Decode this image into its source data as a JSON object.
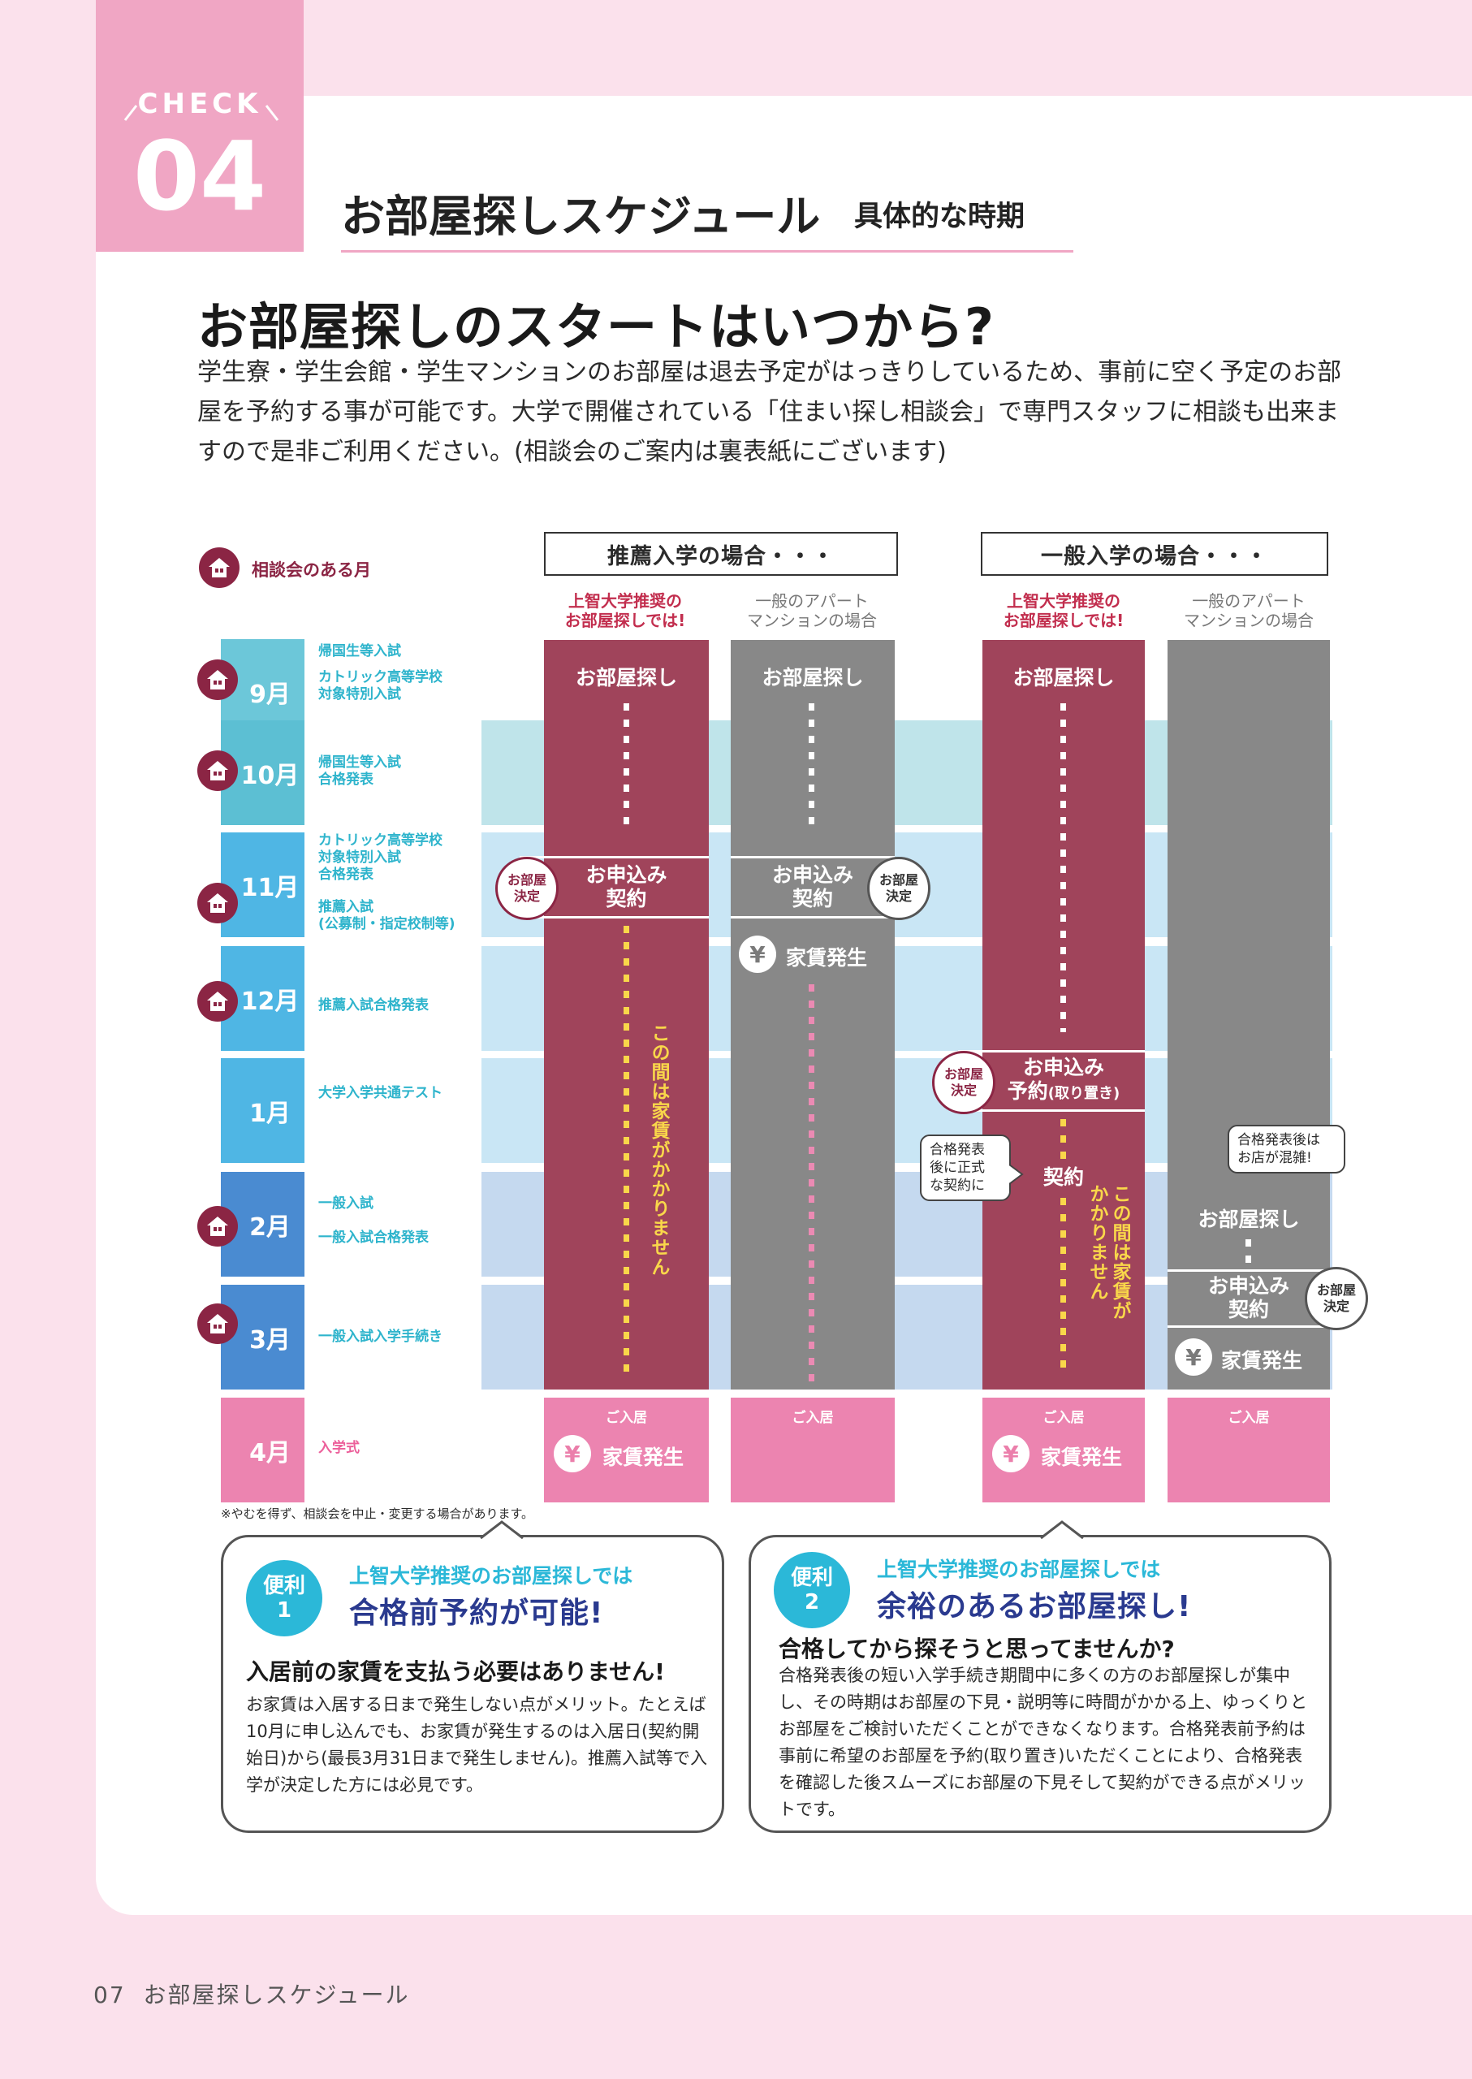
{
  "check": {
    "word": "CHECK",
    "number": "04"
  },
  "section": {
    "title": "お部屋探しスケジュール",
    "subtitle": "具体的な時期"
  },
  "headline": "お部屋探しのスタートはいつから?",
  "intro": "学生寮・学生会館・学生マンションのお部屋は退去予定がはっきりしているため、事前に空く予定のお部屋を予約する事が可能です。大学で開催されている「住まい探し相談会」で専門スタッフに相談も出来ますので是非ご利用ください。(相談会のご案内は裏表紙にございます)",
  "legend": {
    "icon": "house-icon",
    "label": "相談会のある月"
  },
  "headers": {
    "recommend": "推薦入学の場合・・・",
    "general": "一般入学の場合・・・",
    "sophia_1": "上智大学推奨の",
    "sophia_2": "お部屋探しでは!",
    "apart_1": "一般のアパート",
    "apart_2": "マンションの場合"
  },
  "months": [
    {
      "label": "9月",
      "consult": true,
      "events": [
        "帰国生等入試",
        "",
        "カトリック高等学校",
        "対象特別入試"
      ]
    },
    {
      "label": "10月",
      "consult": true,
      "events": [
        "帰国生等入試",
        "合格発表"
      ]
    },
    {
      "label": "11月",
      "consult": true,
      "events": [
        "カトリック高等学校",
        "対象特別入試",
        "合格発表",
        "",
        "推薦入試",
        "(公募制・指定校制等)"
      ]
    },
    {
      "label": "12月",
      "consult": true,
      "events": [
        "推薦入試合格発表"
      ]
    },
    {
      "label": "1月",
      "consult": false,
      "events": [
        "大学入学共通テスト"
      ]
    },
    {
      "label": "2月",
      "consult": true,
      "events": [
        "一般入試",
        "",
        "一般入試合格発表"
      ]
    },
    {
      "label": "3月",
      "consult": true,
      "events": [
        "一般入試入学手続き"
      ]
    },
    {
      "label": "4月",
      "consult": false,
      "events": [
        "入学式"
      ]
    }
  ],
  "schedule": {
    "search": "お部屋探し",
    "apply": "お申込み",
    "contract": "契約",
    "reserve": "予約",
    "reserve_note": "(取り置き)",
    "room_decided_1": "お部屋",
    "room_decided_2": "決定",
    "rent": "家賃発生",
    "yen": "¥",
    "move_in": "ご入居",
    "no_rent_1": "この間は家賃がかかりません",
    "no_rent_2a": "この間は家賃が",
    "no_rent_2b": "かかりません",
    "speech_left": [
      "合格発表",
      "後に正式",
      "な契約に"
    ],
    "speech_right": [
      "合格発表後は",
      "お店が混雑!"
    ]
  },
  "note": "※やむを得ず、相談会を中止・変更する場合があります。",
  "benefits": [
    {
      "badge_1": "便利",
      "badge_2": "1",
      "small": "上智大学推奨のお部屋探しでは",
      "big": "合格前予約が可能!",
      "lead": "入居前の家賃を支払う必要はありません!",
      "body": "お家賃は入居する日まで発生しない点がメリット。たとえば10月に申し込んでも、お家賃が発生するのは入居日(契約開始日)から(最長3月31日まで発生しません)。推薦入試等で入学が決定した方には必見です。"
    },
    {
      "badge_1": "便利",
      "badge_2": "2",
      "small": "上智大学推奨のお部屋探しでは",
      "big": "余裕のあるお部屋探し!",
      "lead": "合格してから探そうと思ってませんか?",
      "body": "合格発表後の短い入学手続き期間中に多くの方のお部屋探しが集中し、その時期はお部屋の下見・説明等に時間がかかる上、ゆっくりとお部屋をご検討いただくことができなくなります。合格発表前予約は事前に希望のお部屋を予約(取り置き)いただくことにより、合格発表を確認した後スムーズにお部屋の下見そして契約ができる点がメリットです。"
    }
  ],
  "footer": {
    "page": "07",
    "title": "お部屋探しスケジュール"
  },
  "colors": {
    "pink": "#f0a6c4",
    "maroon": "#a0445b",
    "gray": "#888888",
    "cyan": "#2eb4cc",
    "move_in_pink": "#ec84b0",
    "yellow": "#f9d74a",
    "navy": "#2a3a8f"
  }
}
